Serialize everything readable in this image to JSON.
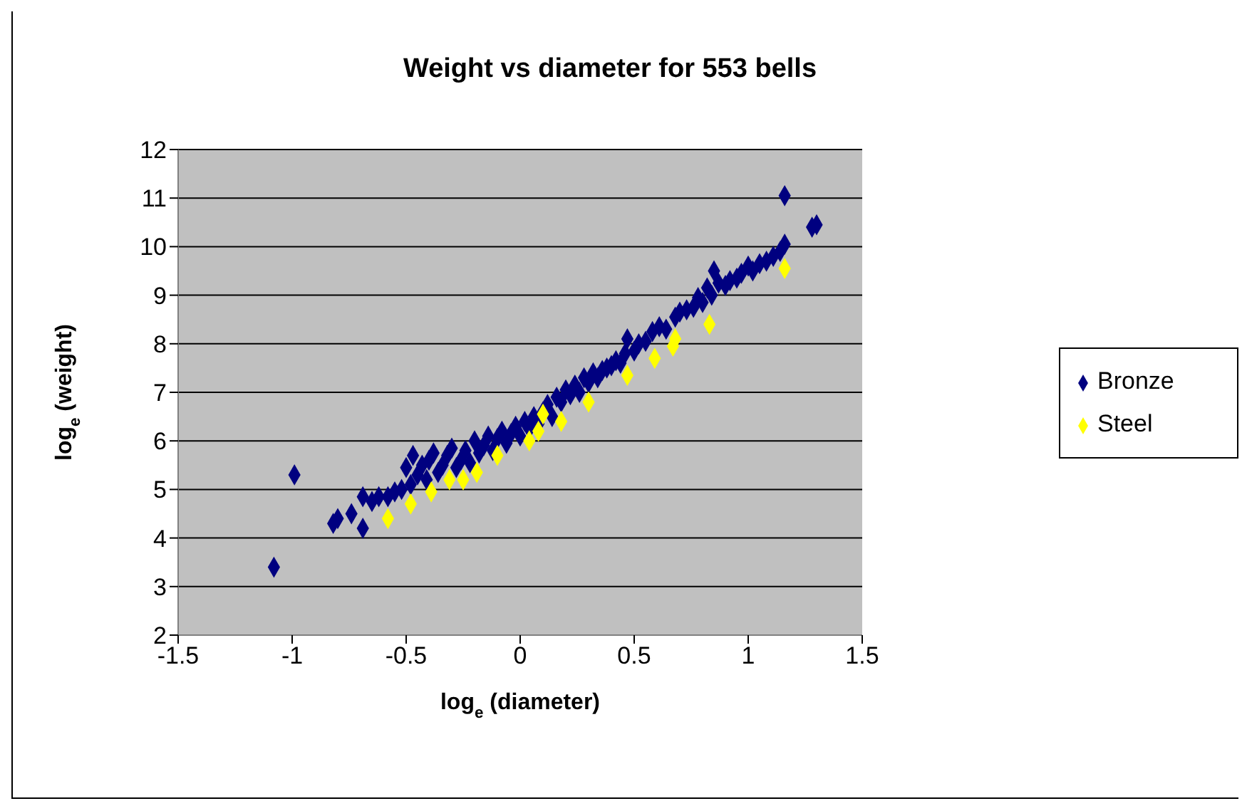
{
  "chart_data": {
    "type": "scatter",
    "title": "Weight vs diameter for 553 bells",
    "xlabel": "log$_{e}$(diameter)",
    "ylabel": "log$_{e}$(weight)",
    "xlim": [
      -1.5,
      1.5
    ],
    "xticks": [
      -1.5,
      -1,
      -0.5,
      0,
      0.5,
      1,
      1.5
    ],
    "ylim": [
      2,
      12
    ],
    "yticks": [
      2,
      3,
      4,
      5,
      6,
      7,
      8,
      9,
      10,
      11,
      12
    ],
    "grid": "y",
    "legend": "right",
    "marker": "diamond",
    "series": [
      {
        "name": "Bronze",
        "color": "#000080",
        "x": [
          -1.08,
          -0.99,
          -0.82,
          -0.8,
          -0.74,
          -0.69,
          -0.69,
          -0.65,
          -0.62,
          -0.58,
          -0.55,
          -0.52,
          -0.5,
          -0.48,
          -0.47,
          -0.45,
          -0.43,
          -0.41,
          -0.4,
          -0.38,
          -0.36,
          -0.34,
          -0.32,
          -0.3,
          -0.28,
          -0.26,
          -0.24,
          -0.22,
          -0.2,
          -0.18,
          -0.16,
          -0.14,
          -0.12,
          -0.1,
          -0.08,
          -0.06,
          -0.04,
          -0.02,
          0,
          0.02,
          0.04,
          0.06,
          0.08,
          0.1,
          0.12,
          0.14,
          0.16,
          0.18,
          0.2,
          0.22,
          0.24,
          0.26,
          0.28,
          0.3,
          0.32,
          0.34,
          0.36,
          0.38,
          0.4,
          0.42,
          0.44,
          0.46,
          0.47,
          0.5,
          0.52,
          0.55,
          0.58,
          0.61,
          0.64,
          0.68,
          0.7,
          0.73,
          0.76,
          0.78,
          0.8,
          0.82,
          0.84,
          0.85,
          0.87,
          0.9,
          0.92,
          0.95,
          0.97,
          1,
          1.02,
          1.05,
          1.08,
          1.11,
          1.14,
          1.16,
          1.16,
          1.28,
          1.3
        ],
        "values": [
          3.4,
          5.3,
          4.3,
          4.4,
          4.5,
          4.2,
          4.85,
          4.75,
          4.85,
          4.85,
          4.95,
          5,
          5.45,
          5.1,
          5.7,
          5.3,
          5.5,
          5.2,
          5.6,
          5.75,
          5.35,
          5.5,
          5.7,
          5.85,
          5.45,
          5.6,
          5.8,
          5.55,
          6,
          5.75,
          5.9,
          6.1,
          5.8,
          6.05,
          6.2,
          5.95,
          6.15,
          6.3,
          6.1,
          6.4,
          6.25,
          6.5,
          6.35,
          6.6,
          6.75,
          6.5,
          6.9,
          6.8,
          7.05,
          6.95,
          7.15,
          7,
          7.3,
          7.2,
          7.4,
          7.3,
          7.45,
          7.5,
          7.55,
          7.65,
          7.6,
          7.8,
          8.1,
          7.85,
          8,
          8.05,
          8.25,
          8.35,
          8.3,
          8.55,
          8.65,
          8.7,
          8.75,
          8.95,
          8.85,
          9.15,
          9,
          9.5,
          9.25,
          9.2,
          9.3,
          9.35,
          9.45,
          9.6,
          9.5,
          9.65,
          9.7,
          9.8,
          9.9,
          10.05,
          11.05,
          10.4,
          10.45
        ]
      },
      {
        "name": "Steel",
        "color": "#ffff00",
        "x": [
          -0.58,
          -0.48,
          -0.39,
          -0.31,
          -0.25,
          -0.19,
          -0.1,
          0.04,
          0.08,
          0.1,
          0.18,
          0.3,
          0.47,
          0.59,
          0.67,
          0.68,
          0.83,
          1.16
        ],
        "values": [
          4.4,
          4.7,
          4.95,
          5.2,
          5.2,
          5.35,
          5.7,
          6,
          6.2,
          6.55,
          6.4,
          6.8,
          7.35,
          7.7,
          7.95,
          8.1,
          8.4,
          9.55
        ]
      }
    ]
  }
}
